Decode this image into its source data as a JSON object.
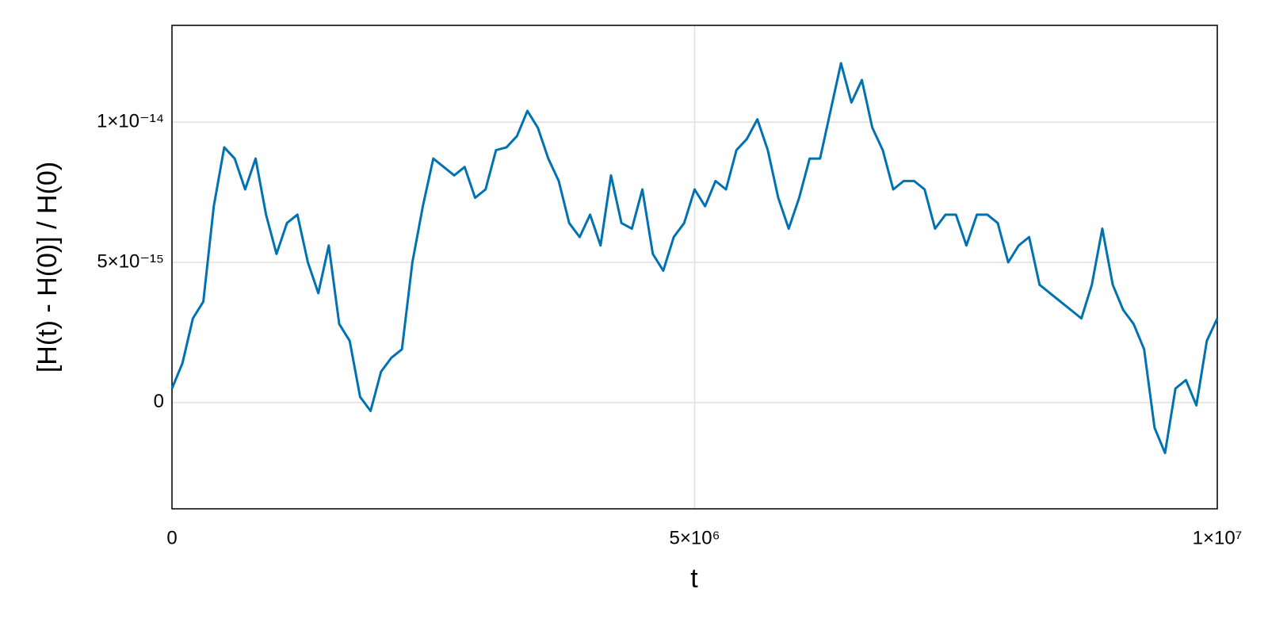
{
  "chart_data": {
    "type": "line",
    "xlabel": "t",
    "ylabel": "[H(t) - H(0)] / H(0)",
    "xlim": [
      0,
      10000000
    ],
    "ylim": [
      -3.79e-15,
      1.345e-14
    ],
    "xticks": [
      0,
      {
        "value": 5000000,
        "label": "5×10⁶"
      },
      {
        "value": 10000000,
        "label": "1×10⁷"
      }
    ],
    "yticks": [
      0,
      {
        "value": 5e-15,
        "label": "5×10⁻¹⁵"
      },
      {
        "value": 1e-14,
        "label": "1×10⁻¹⁴"
      }
    ],
    "grid": true,
    "x": [
      0,
      100000,
      200000,
      300000,
      400000,
      500000,
      600000,
      700000,
      800000,
      900000,
      1000000,
      1100000,
      1200000,
      1300000,
      1400000,
      1500000,
      1600000,
      1700000,
      1800000,
      1900000,
      2000000,
      2100000,
      2200000,
      2300000,
      2400000,
      2500000,
      2600000,
      2700000,
      2800000,
      2900000,
      3000000,
      3100000,
      3200000,
      3300000,
      3400000,
      3500000,
      3600000,
      3700000,
      3800000,
      3900000,
      4000000,
      4100000,
      4200000,
      4300000,
      4400000,
      4500000,
      4600000,
      4700000,
      4800000,
      4900000,
      5000000,
      5100000,
      5200000,
      5300000,
      5400000,
      5500000,
      5600000,
      5700000,
      5800000,
      5900000,
      6000000,
      6100000,
      6200000,
      6300000,
      6400000,
      6500000,
      6600000,
      6700000,
      6800000,
      6900000,
      7000000,
      7100000,
      7200000,
      7300000,
      7400000,
      7500000,
      7600000,
      7700000,
      7800000,
      7900000,
      8000000,
      8100000,
      8200000,
      8300000,
      8400000,
      8500000,
      8600000,
      8700000,
      8800000,
      8900000,
      9000000,
      9100000,
      9200000,
      9300000,
      9400000,
      9500000,
      9600000,
      9700000,
      9800000,
      9900000,
      10000000
    ],
    "series": [
      {
        "color": "#0072b2",
        "values": [
          5e-16,
          1.4e-15,
          3e-15,
          3.6e-15,
          7e-15,
          9.1e-15,
          8.7e-15,
          7.6e-15,
          8.7e-15,
          6.7e-15,
          5.3e-15,
          6.4e-15,
          6.7e-15,
          5e-15,
          3.9e-15,
          5.6e-15,
          2.8e-15,
          2.2e-15,
          2e-16,
          -3e-16,
          1.1e-15,
          1.6e-15,
          1.9e-15,
          5e-15,
          7e-15,
          8.7e-15,
          8.4e-15,
          8.1e-15,
          8.4e-15,
          7.3e-15,
          7.6e-15,
          9e-15,
          9.1e-15,
          9.5e-15,
          1.04e-14,
          9.8e-15,
          8.7e-15,
          7.9e-15,
          6.4e-15,
          5.9e-15,
          6.7e-15,
          5.6e-15,
          8.1e-15,
          6.4e-15,
          6.2e-15,
          7.6e-15,
          5.3e-15,
          4.7e-15,
          5.9e-15,
          6.4e-15,
          7.6e-15,
          7e-15,
          7.9e-15,
          7.6e-15,
          9e-15,
          9.4e-15,
          1.01e-14,
          9e-15,
          7.3e-15,
          6.2e-15,
          7.3e-15,
          8.7e-15,
          8.7e-15,
          1.04e-14,
          1.21e-14,
          1.07e-14,
          1.15e-14,
          9.8e-15,
          9e-15,
          7.6e-15,
          7.9e-15,
          7.9e-15,
          7.6e-15,
          6.2e-15,
          6.7e-15,
          6.7e-15,
          5.6e-15,
          6.7e-15,
          6.7e-15,
          6.4e-15,
          5e-15,
          5.6e-15,
          5.9e-15,
          4.2e-15,
          3.9e-15,
          3.6e-15,
          3.3e-15,
          3e-15,
          4.2e-15,
          6.2e-15,
          4.2e-15,
          3.3e-15,
          2.8e-15,
          1.9e-15,
          -9e-16,
          -1.8e-15,
          5e-16,
          8e-16,
          -1e-16,
          2.2e-15,
          3e-15
        ]
      }
    ]
  }
}
